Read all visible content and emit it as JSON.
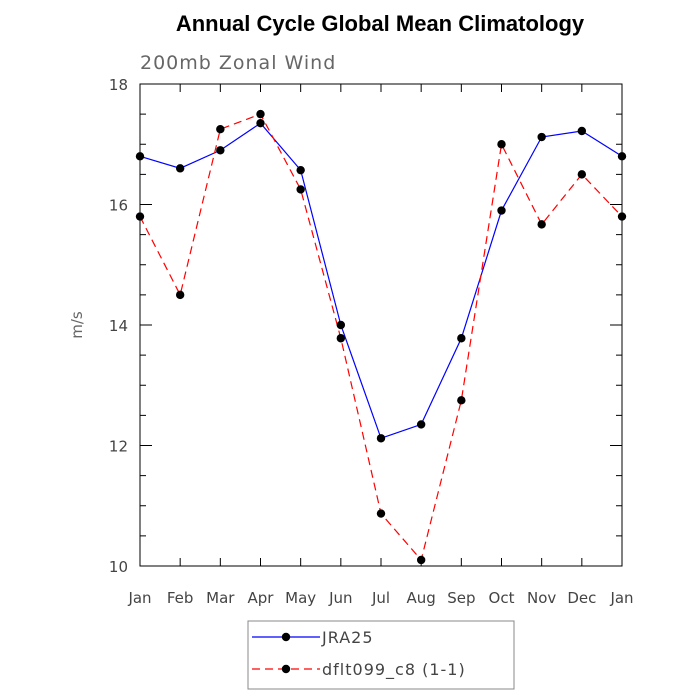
{
  "chart_data": {
    "type": "line",
    "title": "Annual Cycle Global Mean Climatology",
    "subtitle": "200mb Zonal Wind",
    "xlabel": "",
    "ylabel": "m/s",
    "categories": [
      "Jan",
      "Feb",
      "Mar",
      "Apr",
      "May",
      "Jun",
      "Jul",
      "Aug",
      "Sep",
      "Oct",
      "Nov",
      "Dec",
      "Jan"
    ],
    "ylim": [
      10,
      18
    ],
    "yticks": [
      10,
      12,
      14,
      16,
      18
    ],
    "grid": false,
    "legend_position": "bottom",
    "series": [
      {
        "name": "JRA25",
        "color": "#0000ff",
        "dash": "solid",
        "values": [
          16.8,
          16.6,
          16.9,
          17.35,
          16.57,
          14.0,
          12.12,
          12.35,
          13.78,
          15.9,
          17.12,
          17.22,
          16.8
        ]
      },
      {
        "name": "dflt099_c8 (1-1)",
        "color": "#ff0000",
        "dash": "dashed",
        "values": [
          15.8,
          14.5,
          17.25,
          17.5,
          16.25,
          13.78,
          10.87,
          10.1,
          12.75,
          17.0,
          15.67,
          16.5,
          15.8
        ]
      }
    ]
  }
}
